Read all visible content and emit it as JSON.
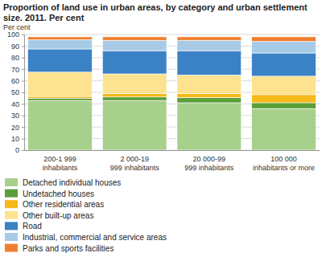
{
  "chart_data": {
    "type": "bar",
    "stacked": true,
    "grid": true,
    "title": "Proportion of land use in urban areas, by category and urban settlement size. 2011. Per cent",
    "y_label": "Per cent",
    "categories": [
      "200-1 999 inhabitants",
      "2 000-19 999 inhabitants",
      "20 000-99 999 inhabitants",
      "100 000 inhabitants or more"
    ],
    "ylim": [
      0,
      100
    ],
    "yticks": [
      0,
      10,
      20,
      30,
      40,
      50,
      60,
      70,
      80,
      90,
      100
    ],
    "series": [
      {
        "name": "Detached individual houses",
        "color": "#a8d08d",
        "values": [
          43,
          43,
          41,
          36
        ]
      },
      {
        "name": "Undetached houses",
        "color": "#5a9e3a",
        "values": [
          2,
          3,
          4.5,
          5
        ]
      },
      {
        "name": "Other residential areas",
        "color": "#f5b91a",
        "values": [
          1.5,
          3,
          3.5,
          7
        ]
      },
      {
        "name": "Other built-up areas",
        "color": "#fde28f",
        "values": [
          21,
          17,
          16,
          16
        ]
      },
      {
        "name": "Road",
        "color": "#3b82c4",
        "values": [
          20,
          20,
          21,
          20
        ]
      },
      {
        "name": "Industrial, commercial and service areas",
        "color": "#a7cbe7",
        "values": [
          8,
          9,
          9,
          10
        ]
      },
      {
        "name": "Parks and sports facilities",
        "color": "#ef7f2f",
        "values": [
          2.5,
          3,
          3,
          4
        ]
      }
    ]
  }
}
